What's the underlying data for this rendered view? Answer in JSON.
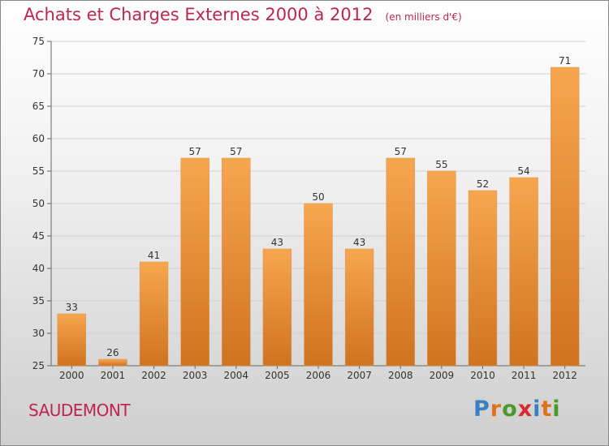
{
  "title": "Achats et Charges Externes 2000 à 2012",
  "unit_label": "(en milliers d'€)",
  "commune": "SAUDEMONT",
  "logo": {
    "text": "Proxiti",
    "letter_colors": [
      "#3a7fc4",
      "#e0701b",
      "#4a9a2a",
      "#d8292f",
      "#3a7fc4",
      "#e0701b",
      "#4a9a2a"
    ]
  },
  "colors": {
    "title": "#c0264d",
    "bar_light": "#f7a650",
    "bar_dark": "#d07320",
    "grid": "#d0d0d0"
  },
  "chart_data": {
    "type": "bar",
    "title": "Achats et Charges Externes 2000 à 2012",
    "subtitle": "(en milliers d'€)",
    "categories": [
      "2000",
      "2001",
      "2002",
      "2003",
      "2004",
      "2005",
      "2006",
      "2007",
      "2008",
      "2009",
      "2010",
      "2011",
      "2012"
    ],
    "values": [
      33,
      26,
      41,
      57,
      57,
      43,
      50,
      43,
      57,
      55,
      52,
      54,
      71
    ],
    "ylim": [
      25,
      75
    ],
    "yticks": [
      25,
      30,
      35,
      40,
      45,
      50,
      55,
      60,
      65,
      70,
      75
    ],
    "grid": true,
    "data_labels": true,
    "xlabel": "",
    "ylabel": ""
  }
}
